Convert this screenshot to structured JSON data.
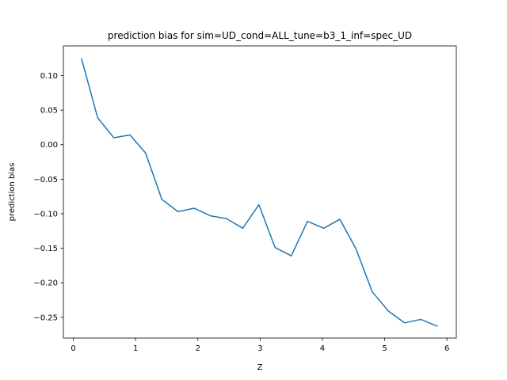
{
  "chart_data": {
    "type": "line",
    "title": "prediction bias for sim=UD_cond=ALL_tune=b3_1_inf=spec_UD",
    "xlabel": "Z",
    "ylabel": "prediction bias",
    "xlim": [
      -0.16,
      6.15
    ],
    "ylim": [
      -0.28,
      0.143
    ],
    "xticks": [
      0,
      1,
      2,
      3,
      4,
      5,
      6
    ],
    "xtick_labels": [
      "0",
      "1",
      "2",
      "3",
      "4",
      "5",
      "6"
    ],
    "yticks": [
      0.1,
      0.05,
      0.0,
      -0.05,
      -0.1,
      -0.15,
      -0.2,
      -0.25
    ],
    "ytick_labels": [
      "0.10",
      "0.05",
      "0.00",
      "−0.05",
      "−0.10",
      "−0.15",
      "−0.20",
      "−0.25"
    ],
    "grid": false,
    "series": [
      {
        "color": "#1f77b4",
        "x": [
          0.13,
          0.39,
          0.65,
          0.91,
          1.16,
          1.42,
          1.68,
          1.94,
          2.2,
          2.46,
          2.72,
          2.98,
          3.24,
          3.5,
          3.76,
          4.02,
          4.28,
          4.54,
          4.8,
          5.06,
          5.32,
          5.58,
          5.85
        ],
        "y": [
          0.125,
          0.039,
          0.01,
          0.014,
          -0.012,
          -0.079,
          -0.097,
          -0.092,
          -0.103,
          -0.107,
          -0.121,
          -0.087,
          -0.149,
          -0.161,
          -0.111,
          -0.121,
          -0.108,
          -0.151,
          -0.213,
          -0.241,
          -0.258,
          -0.253,
          -0.263
        ]
      }
    ]
  }
}
